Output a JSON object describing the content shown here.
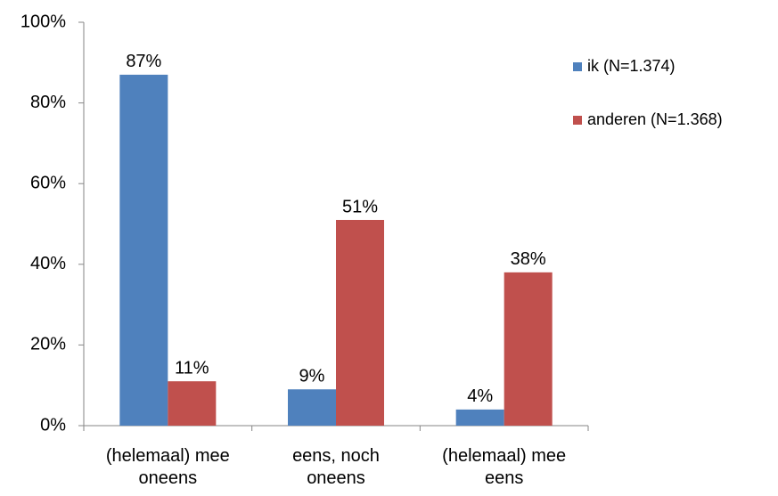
{
  "chart_data": {
    "type": "bar",
    "categories": [
      "(helemaal) mee oneens",
      "eens, noch oneens",
      "(helemaal) mee eens"
    ],
    "series": [
      {
        "name": "ik (N=1.374)",
        "color": "#4f81bd",
        "values": [
          87,
          9,
          4
        ],
        "value_labels": [
          "87%",
          "9%",
          "4%"
        ]
      },
      {
        "name": "anderen (N=1.368)",
        "color": "#c0504d",
        "values": [
          11,
          51,
          38
        ],
        "value_labels": [
          "11%",
          "51%",
          "38%"
        ]
      }
    ],
    "ylim": [
      0,
      100
    ],
    "yticks": [
      {
        "value": 0,
        "label": "0%"
      },
      {
        "value": 20,
        "label": "20%"
      },
      {
        "value": 40,
        "label": "40%"
      },
      {
        "value": 60,
        "label": "60%"
      },
      {
        "value": 80,
        "label": "80%"
      },
      {
        "value": 100,
        "label": "100%"
      }
    ],
    "grid": false,
    "legend": "right"
  }
}
